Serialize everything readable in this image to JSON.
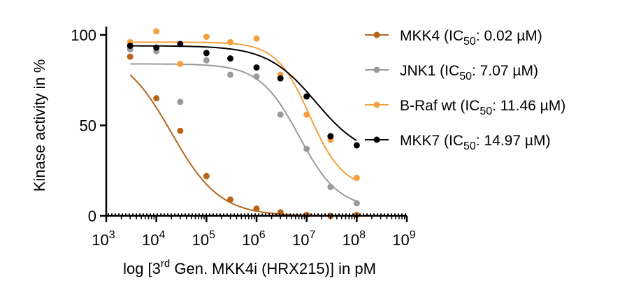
{
  "chart_data": {
    "type": "scatter",
    "ylabel": "Kinase activity in %",
    "xlabel": {
      "pre": "log [3",
      "sup": "rd",
      "post": " Gen. MKK4i (HRX215)] in pM"
    },
    "x_scale": "log",
    "xlim": [
      1000,
      1000000000
    ],
    "ylim": [
      0,
      100
    ],
    "x_ticks": [
      {
        "base": "10",
        "exp": "3"
      },
      {
        "base": "10",
        "exp": "4"
      },
      {
        "base": "10",
        "exp": "5"
      },
      {
        "base": "10",
        "exp": "6"
      },
      {
        "base": "10",
        "exp": "7"
      },
      {
        "base": "10",
        "exp": "8"
      },
      {
        "base": "10",
        "exp": "9"
      }
    ],
    "y_ticks": [
      "0",
      "50",
      "100"
    ],
    "x": [
      3000,
      10000,
      30000,
      100000,
      300000,
      1000000,
      3000000,
      10000000,
      30000000,
      100000000
    ],
    "legend_position": "right",
    "series": [
      {
        "name": "MKK4",
        "label_pre": "MKK4 (IC",
        "label_sub": "50",
        "label_post": ":  0.02 µM)",
        "color": "#b8651b",
        "y": [
          88,
          65,
          47,
          22,
          9,
          4,
          2,
          0.5,
          0,
          0.5
        ],
        "fit": {
          "top": 92,
          "bottom": 0,
          "ic50_log": 4.3,
          "hill": 0.9
        }
      },
      {
        "name": "JNK1",
        "label_pre": "JNK1 (IC",
        "label_sub": "50",
        "label_post": ": 7.07 µM)",
        "color": "#9a9a9a",
        "y": [
          92,
          91,
          63,
          86,
          78,
          77,
          56,
          37,
          16,
          7
        ],
        "fit": {
          "top": 84,
          "bottom": 4,
          "ic50_log": 6.85,
          "hill": 1.1
        }
      },
      {
        "name": "B-Raf wt",
        "label_pre": "B-Raf wt (IC",
        "label_sub": "50",
        "label_post": ": 11.46 µM)",
        "color": "#f5a040",
        "y": [
          96,
          102,
          84,
          99,
          96,
          98,
          78,
          56,
          42,
          21
        ],
        "fit": {
          "top": 96,
          "bottom": 15,
          "ic50_log": 7.06,
          "hill": 1.3
        }
      },
      {
        "name": "MKK7",
        "label_pre": "MKK7 (IC",
        "label_sub": "50",
        "label_post": ": 14.97 µM)",
        "color": "#000000",
        "y": [
          94,
          93,
          95,
          90,
          87,
          82,
          76,
          66,
          44,
          39
        ],
        "fit": {
          "top": 94,
          "bottom": 32,
          "ic50_log": 7.18,
          "hill": 0.9
        }
      }
    ]
  }
}
